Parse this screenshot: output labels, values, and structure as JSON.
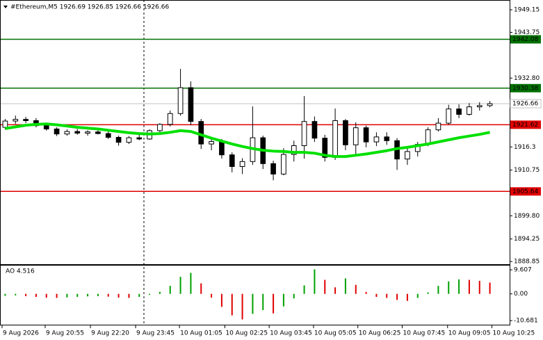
{
  "chart_data": [
    {
      "type": "candlestick",
      "title": "#Ethereum,M5  1926.69 1926.85 1926.66 1926.66",
      "xlim": [
        -0.5,
        47.5
      ],
      "xticks": [
        {
          "value": -0.3,
          "label": "9 Aug 2026"
        },
        {
          "value": 3.88,
          "label": "9 Aug 20:55"
        },
        {
          "value": 8.27,
          "label": "9 Aug 22:20"
        },
        {
          "value": 12.65,
          "label": "9 Aug 23:45"
        },
        {
          "value": 16.9,
          "label": "10 Aug 01:05"
        },
        {
          "value": 21.3,
          "label": "10 Aug 02:25"
        },
        {
          "value": 25.6,
          "label": "10 Aug 03:45"
        },
        {
          "value": 29.9,
          "label": "10 Aug 05:05"
        },
        {
          "value": 34.2,
          "label": "10 Aug 06:25"
        },
        {
          "value": 38.5,
          "label": "10 Aug 07:45"
        },
        {
          "value": 42.9,
          "label": "10 Aug 09:05"
        },
        {
          "value": 47.2,
          "label": "10 Aug 10:25"
        }
      ],
      "ylim": [
        1888.2,
        1951.5
      ],
      "yticks": [
        1949.15,
        1943.75,
        {
          "value": 1932.8,
          "label": "1932.80"
        },
        1916.3,
        1910.75,
        {
          "value": 1899.8,
          "label": "1899.80"
        },
        1894.25,
        1888.85
      ],
      "open": [
        1921.0,
        1922.5,
        1922.9,
        1922.6,
        1921.4,
        1920.6,
        1919.4,
        1920.0,
        1919.6,
        1919.9,
        1919.5,
        1918.6,
        1917.4,
        1918.5,
        1918.2,
        1920.2,
        1921.7,
        1924.3,
        1930.5,
        1922.4,
        1917.0,
        1917.6,
        1914.4,
        1911.6,
        1912.8,
        1918.5,
        1912.3,
        1909.8,
        1914.5,
        1916.6,
        1922.4,
        1918.4,
        1913.8,
        1922.6,
        1916.8,
        1920.9,
        1917.5,
        1918.7,
        1917.8,
        1913.4,
        1915.2,
        1916.9,
        1920.4,
        1922.0,
        1925.4,
        1924.1,
        1925.9,
        1926.2
      ],
      "high": [
        1923.0,
        1923.8,
        1923.5,
        1923.2,
        1922.0,
        1921.0,
        1920.5,
        1920.6,
        1920.3,
        1920.5,
        1920.0,
        1919.0,
        1918.9,
        1919.2,
        1920.5,
        1922.0,
        1925.0,
        1935.0,
        1932.0,
        1923.0,
        1918.6,
        1918.2,
        1915.0,
        1913.6,
        1926.0,
        1919.0,
        1913.0,
        1916.0,
        1917.8,
        1928.5,
        1923.6,
        1919.2,
        1925.5,
        1923.0,
        1922.2,
        1921.4,
        1919.8,
        1919.8,
        1918.4,
        1916.0,
        1917.5,
        1921.0,
        1923.2,
        1926.4,
        1926.5,
        1926.8,
        1927.0,
        1927.3
      ],
      "low": [
        1920.5,
        1921.8,
        1922.0,
        1921.0,
        1920.2,
        1918.9,
        1919.0,
        1919.2,
        1919.0,
        1919.3,
        1918.2,
        1916.6,
        1917.0,
        1917.9,
        1918.0,
        1919.8,
        1921.2,
        1923.8,
        1921.5,
        1915.8,
        1915.5,
        1913.5,
        1910.2,
        1909.8,
        1912.0,
        1911.0,
        1908.3,
        1909.5,
        1912.8,
        1913.5,
        1917.5,
        1912.8,
        1913.2,
        1915.5,
        1914.0,
        1916.2,
        1916.5,
        1916.8,
        1910.8,
        1912.0,
        1914.0,
        1916.5,
        1920.0,
        1921.6,
        1923.2,
        1923.8,
        1925.0,
        1925.8
      ],
      "close": [
        1922.5,
        1922.9,
        1922.6,
        1921.4,
        1920.6,
        1919.4,
        1920.0,
        1919.6,
        1919.9,
        1919.5,
        1918.6,
        1917.4,
        1918.5,
        1918.2,
        1920.2,
        1921.7,
        1924.3,
        1930.5,
        1922.4,
        1917.0,
        1917.6,
        1914.4,
        1911.6,
        1912.8,
        1918.5,
        1912.3,
        1909.8,
        1914.5,
        1916.6,
        1922.4,
        1918.4,
        1913.8,
        1922.6,
        1916.8,
        1920.9,
        1917.5,
        1918.7,
        1917.8,
        1913.4,
        1915.2,
        1916.9,
        1920.4,
        1922.0,
        1925.4,
        1924.1,
        1925.9,
        1926.2,
        1926.66
      ],
      "ma": {
        "color": "#00e000",
        "values": [
          1920.7,
          1921.1,
          1921.5,
          1921.7,
          1921.8,
          1921.6,
          1921.3,
          1921.0,
          1920.8,
          1920.6,
          1920.3,
          1920.0,
          1919.7,
          1919.5,
          1919.4,
          1919.5,
          1919.8,
          1920.2,
          1920.0,
          1919.2,
          1918.4,
          1917.7,
          1917.0,
          1916.4,
          1915.9,
          1915.5,
          1915.3,
          1915.2,
          1915.0,
          1915.0,
          1914.8,
          1914.3,
          1914.0,
          1914.0,
          1914.3,
          1914.6,
          1915.0,
          1915.4,
          1915.9,
          1916.2,
          1916.6,
          1917.0,
          1917.5,
          1918.0,
          1918.5,
          1918.9,
          1919.3,
          1919.8
        ]
      },
      "levels": [
        {
          "value": 1942.08,
          "color": "#007000"
        },
        {
          "value": 1930.38,
          "color": "#007000"
        },
        {
          "value": 1921.62,
          "color": "#e00000"
        },
        {
          "value": 1905.64,
          "color": "#e00000"
        }
      ],
      "last": 1926.66
    },
    {
      "type": "bar",
      "title": "AO 4.516",
      "ylim": [
        -12.6,
        11.3
      ],
      "yticks": [
        9.607,
        {
          "value": 0,
          "label": "0.00"
        },
        -10.681
      ],
      "up_color": "#00a000",
      "down_color": "#e00000",
      "values": [
        -0.8,
        -0.6,
        -0.9,
        -1.2,
        -1.5,
        -1.6,
        -1.4,
        -1.2,
        -1.0,
        -0.9,
        -1.1,
        -1.5,
        -1.6,
        -1.2,
        -0.4,
        0.8,
        3.2,
        6.8,
        8.4,
        4.2,
        -1.5,
        -5.2,
        -8.6,
        -10.2,
        -8.0,
        -6.5,
        -7.8,
        -5.0,
        -1.8,
        3.4,
        9.8,
        5.6,
        2.6,
        6.2,
        3.6,
        0.8,
        -1.2,
        -1.6,
        -2.4,
        -2.8,
        -1.6,
        0.6,
        3.2,
        5.0,
        5.8,
        5.6,
        5.2,
        4.516
      ]
    }
  ]
}
